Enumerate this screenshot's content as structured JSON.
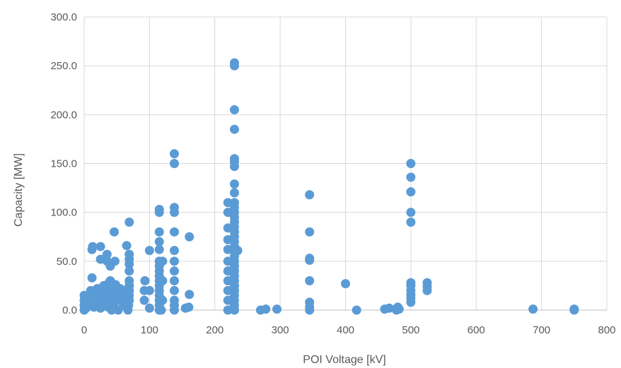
{
  "chart_data": {
    "type": "scatter",
    "xlabel": "POI Voltage [kV]",
    "ylabel": "Capacity [MW]",
    "xlim": [
      0,
      800
    ],
    "ylim": [
      0,
      300
    ],
    "x_ticks": [
      "0",
      "100",
      "200",
      "300",
      "400",
      "500",
      "600",
      "700",
      "800"
    ],
    "y_ticks": [
      "0.0",
      "50.0",
      "100.0",
      "150.0",
      "200.0",
      "250.0",
      "300.0"
    ],
    "grid": true,
    "legend": "none",
    "marker_color": "#5b9bd5",
    "series": [
      {
        "points": [
          [
            0,
            0
          ],
          [
            0,
            5
          ],
          [
            0,
            10
          ],
          [
            0,
            15
          ],
          [
            3,
            2
          ],
          [
            5,
            8
          ],
          [
            8,
            12
          ],
          [
            10,
            20
          ],
          [
            12,
            33
          ],
          [
            12,
            62
          ],
          [
            13,
            65
          ],
          [
            15,
            3
          ],
          [
            15,
            18
          ],
          [
            18,
            6
          ],
          [
            20,
            14
          ],
          [
            20,
            22
          ],
          [
            22,
            10
          ],
          [
            25,
            2
          ],
          [
            25,
            52
          ],
          [
            25,
            65
          ],
          [
            28,
            18
          ],
          [
            30,
            5
          ],
          [
            30,
            12
          ],
          [
            30,
            25
          ],
          [
            32,
            15
          ],
          [
            33,
            8
          ],
          [
            35,
            20
          ],
          [
            35,
            50
          ],
          [
            35,
            57
          ],
          [
            37,
            3
          ],
          [
            38,
            28
          ],
          [
            40,
            10
          ],
          [
            40,
            18
          ],
          [
            40,
            30
          ],
          [
            40,
            45
          ],
          [
            42,
            0
          ],
          [
            44,
            22
          ],
          [
            45,
            5
          ],
          [
            45,
            14
          ],
          [
            46,
            80
          ],
          [
            47,
            50
          ],
          [
            48,
            26
          ],
          [
            50,
            10
          ],
          [
            50,
            20
          ],
          [
            52,
            0
          ],
          [
            55,
            15
          ],
          [
            55,
            22
          ],
          [
            58,
            18
          ],
          [
            60,
            5
          ],
          [
            60,
            12
          ],
          [
            62,
            20
          ],
          [
            65,
            8
          ],
          [
            65,
            66
          ],
          [
            67,
            0
          ],
          [
            68,
            5
          ],
          [
            69,
            10
          ],
          [
            69,
            15
          ],
          [
            69,
            20
          ],
          [
            69,
            25
          ],
          [
            69,
            30
          ],
          [
            69,
            40
          ],
          [
            69,
            47
          ],
          [
            69,
            52
          ],
          [
            69,
            57
          ],
          [
            69,
            90
          ],
          [
            92,
            10
          ],
          [
            92,
            20
          ],
          [
            93,
            30
          ],
          [
            100,
            2
          ],
          [
            100,
            20
          ],
          [
            100,
            61
          ],
          [
            115,
            0
          ],
          [
            115,
            5
          ],
          [
            115,
            10
          ],
          [
            115,
            15
          ],
          [
            115,
            20
          ],
          [
            115,
            25
          ],
          [
            115,
            30
          ],
          [
            115,
            35
          ],
          [
            115,
            40
          ],
          [
            115,
            45
          ],
          [
            115,
            50
          ],
          [
            115,
            62
          ],
          [
            115,
            70
          ],
          [
            115,
            80
          ],
          [
            115,
            100
          ],
          [
            115,
            103
          ],
          [
            118,
            0
          ],
          [
            120,
            50
          ],
          [
            120,
            30
          ],
          [
            120,
            10
          ],
          [
            138,
            0
          ],
          [
            138,
            5
          ],
          [
            138,
            10
          ],
          [
            138,
            20
          ],
          [
            138,
            30
          ],
          [
            138,
            40
          ],
          [
            138,
            50
          ],
          [
            138,
            61
          ],
          [
            138,
            80
          ],
          [
            138,
            100
          ],
          [
            138,
            105
          ],
          [
            138,
            150
          ],
          [
            138,
            160
          ],
          [
            155,
            2
          ],
          [
            160,
            3
          ],
          [
            161,
            16
          ],
          [
            161,
            75
          ],
          [
            220,
            0
          ],
          [
            220,
            10
          ],
          [
            220,
            20
          ],
          [
            220,
            30
          ],
          [
            220,
            40
          ],
          [
            220,
            50
          ],
          [
            220,
            62
          ],
          [
            220,
            72
          ],
          [
            220,
            84
          ],
          [
            220,
            100
          ],
          [
            220,
            110
          ],
          [
            230,
            0
          ],
          [
            230,
            5
          ],
          [
            230,
            10
          ],
          [
            230,
            15
          ],
          [
            230,
            20
          ],
          [
            230,
            25
          ],
          [
            230,
            30
          ],
          [
            230,
            35
          ],
          [
            230,
            40
          ],
          [
            230,
            45
          ],
          [
            230,
            50
          ],
          [
            230,
            55
          ],
          [
            230,
            60
          ],
          [
            230,
            65
          ],
          [
            230,
            70
          ],
          [
            230,
            75
          ],
          [
            230,
            80
          ],
          [
            230,
            85
          ],
          [
            230,
            90
          ],
          [
            230,
            95
          ],
          [
            230,
            100
          ],
          [
            230,
            105
          ],
          [
            230,
            110
          ],
          [
            230,
            120
          ],
          [
            230,
            129
          ],
          [
            230,
            147
          ],
          [
            230,
            152
          ],
          [
            230,
            155
          ],
          [
            230,
            185
          ],
          [
            230,
            205
          ],
          [
            230,
            250
          ],
          [
            230,
            253
          ],
          [
            235,
            61
          ],
          [
            270,
            0
          ],
          [
            278,
            1
          ],
          [
            295,
            1
          ],
          [
            345,
            0
          ],
          [
            345,
            3
          ],
          [
            345,
            8
          ],
          [
            345,
            30
          ],
          [
            345,
            51
          ],
          [
            345,
            53
          ],
          [
            345,
            80
          ],
          [
            345,
            118
          ],
          [
            400,
            27
          ],
          [
            417,
            0
          ],
          [
            460,
            1
          ],
          [
            467,
            2
          ],
          [
            478,
            0
          ],
          [
            480,
            3
          ],
          [
            482,
            1
          ],
          [
            500,
            8
          ],
          [
            500,
            12
          ],
          [
            500,
            16
          ],
          [
            500,
            20
          ],
          [
            500,
            25
          ],
          [
            500,
            28
          ],
          [
            500,
            90
          ],
          [
            500,
            100
          ],
          [
            500,
            121
          ],
          [
            500,
            136
          ],
          [
            500,
            150
          ],
          [
            525,
            20
          ],
          [
            525,
            24
          ],
          [
            525,
            28
          ],
          [
            687,
            1
          ],
          [
            750,
            0
          ],
          [
            750,
            1
          ]
        ]
      }
    ]
  }
}
